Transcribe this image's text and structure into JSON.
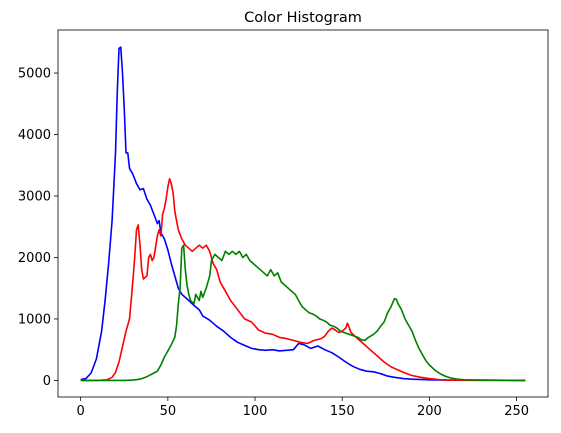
{
  "chart_data": {
    "type": "line",
    "title": "Color Histogram",
    "xlabel": "",
    "ylabel": "",
    "xlim": [
      -13,
      268
    ],
    "ylim": [
      -270,
      5700
    ],
    "xticks": [
      0,
      50,
      100,
      150,
      200,
      250
    ],
    "yticks": [
      0,
      1000,
      2000,
      3000,
      4000,
      5000
    ],
    "grid": false,
    "legend": "none",
    "series": [
      {
        "color": "#0000ff",
        "points": [
          [
            0,
            15
          ],
          [
            3,
            30
          ],
          [
            6,
            120
          ],
          [
            9,
            350
          ],
          [
            12,
            800
          ],
          [
            14,
            1300
          ],
          [
            16,
            1900
          ],
          [
            18,
            2600
          ],
          [
            20,
            3700
          ],
          [
            21,
            4700
          ],
          [
            22,
            5400
          ],
          [
            23,
            5420
          ],
          [
            24,
            5000
          ],
          [
            25,
            4400
          ],
          [
            26,
            3700
          ],
          [
            27,
            3700
          ],
          [
            28,
            3450
          ],
          [
            30,
            3350
          ],
          [
            32,
            3200
          ],
          [
            34,
            3100
          ],
          [
            36,
            3120
          ],
          [
            38,
            2950
          ],
          [
            40,
            2850
          ],
          [
            42,
            2700
          ],
          [
            44,
            2550
          ],
          [
            45,
            2600
          ],
          [
            46,
            2400
          ],
          [
            48,
            2300
          ],
          [
            50,
            2120
          ],
          [
            52,
            1900
          ],
          [
            54,
            1700
          ],
          [
            56,
            1500
          ],
          [
            58,
            1400
          ],
          [
            60,
            1350
          ],
          [
            62,
            1300
          ],
          [
            65,
            1220
          ],
          [
            68,
            1150
          ],
          [
            70,
            1050
          ],
          [
            74,
            980
          ],
          [
            78,
            880
          ],
          [
            82,
            800
          ],
          [
            86,
            700
          ],
          [
            90,
            620
          ],
          [
            94,
            570
          ],
          [
            98,
            520
          ],
          [
            102,
            500
          ],
          [
            106,
            490
          ],
          [
            110,
            500
          ],
          [
            114,
            480
          ],
          [
            118,
            490
          ],
          [
            122,
            500
          ],
          [
            125,
            600
          ],
          [
            128,
            580
          ],
          [
            132,
            520
          ],
          [
            136,
            560
          ],
          [
            140,
            500
          ],
          [
            144,
            450
          ],
          [
            148,
            380
          ],
          [
            152,
            300
          ],
          [
            156,
            230
          ],
          [
            160,
            180
          ],
          [
            164,
            150
          ],
          [
            168,
            140
          ],
          [
            172,
            110
          ],
          [
            176,
            70
          ],
          [
            180,
            50
          ],
          [
            185,
            30
          ],
          [
            190,
            20
          ],
          [
            200,
            10
          ],
          [
            210,
            5
          ],
          [
            220,
            3
          ],
          [
            255,
            0
          ]
        ]
      },
      {
        "color": "#ff0000",
        "points": [
          [
            0,
            0
          ],
          [
            10,
            0
          ],
          [
            15,
            10
          ],
          [
            18,
            50
          ],
          [
            20,
            130
          ],
          [
            22,
            300
          ],
          [
            24,
            550
          ],
          [
            26,
            800
          ],
          [
            28,
            1000
          ],
          [
            29,
            1300
          ],
          [
            30,
            1650
          ],
          [
            31,
            2000
          ],
          [
            32,
            2450
          ],
          [
            33,
            2530
          ],
          [
            34,
            2200
          ],
          [
            35,
            1800
          ],
          [
            36,
            1650
          ],
          [
            38,
            1700
          ],
          [
            39,
            2000
          ],
          [
            40,
            2050
          ],
          [
            41,
            1950
          ],
          [
            42,
            2000
          ],
          [
            44,
            2350
          ],
          [
            45,
            2450
          ],
          [
            46,
            2350
          ],
          [
            47,
            2700
          ],
          [
            48,
            2800
          ],
          [
            49,
            2950
          ],
          [
            50,
            3150
          ],
          [
            51,
            3280
          ],
          [
            52,
            3200
          ],
          [
            53,
            3050
          ],
          [
            54,
            2750
          ],
          [
            56,
            2450
          ],
          [
            58,
            2300
          ],
          [
            60,
            2200
          ],
          [
            62,
            2150
          ],
          [
            64,
            2100
          ],
          [
            66,
            2150
          ],
          [
            68,
            2200
          ],
          [
            70,
            2150
          ],
          [
            72,
            2200
          ],
          [
            74,
            2100
          ],
          [
            76,
            1900
          ],
          [
            78,
            1800
          ],
          [
            80,
            1600
          ],
          [
            82,
            1500
          ],
          [
            86,
            1300
          ],
          [
            90,
            1150
          ],
          [
            94,
            1000
          ],
          [
            98,
            950
          ],
          [
            102,
            820
          ],
          [
            106,
            770
          ],
          [
            110,
            750
          ],
          [
            114,
            700
          ],
          [
            118,
            680
          ],
          [
            122,
            650
          ],
          [
            126,
            620
          ],
          [
            130,
            600
          ],
          [
            134,
            650
          ],
          [
            138,
            680
          ],
          [
            140,
            720
          ],
          [
            142,
            800
          ],
          [
            144,
            850
          ],
          [
            146,
            820
          ],
          [
            148,
            780
          ],
          [
            150,
            800
          ],
          [
            152,
            850
          ],
          [
            153,
            930
          ],
          [
            155,
            780
          ],
          [
            158,
            700
          ],
          [
            162,
            600
          ],
          [
            166,
            500
          ],
          [
            170,
            400
          ],
          [
            174,
            300
          ],
          [
            178,
            220
          ],
          [
            182,
            170
          ],
          [
            186,
            120
          ],
          [
            190,
            80
          ],
          [
            195,
            50
          ],
          [
            200,
            30
          ],
          [
            205,
            15
          ],
          [
            210,
            5
          ],
          [
            220,
            2
          ],
          [
            255,
            0
          ]
        ]
      },
      {
        "color": "#008000",
        "points": [
          [
            0,
            0
          ],
          [
            25,
            0
          ],
          [
            30,
            5
          ],
          [
            34,
            20
          ],
          [
            38,
            60
          ],
          [
            42,
            120
          ],
          [
            44,
            150
          ],
          [
            46,
            250
          ],
          [
            48,
            380
          ],
          [
            50,
            480
          ],
          [
            52,
            580
          ],
          [
            54,
            700
          ],
          [
            55,
            900
          ],
          [
            56,
            1250
          ],
          [
            57,
            1500
          ],
          [
            58,
            2150
          ],
          [
            59,
            2200
          ],
          [
            60,
            1800
          ],
          [
            61,
            1550
          ],
          [
            62,
            1400
          ],
          [
            63,
            1300
          ],
          [
            65,
            1250
          ],
          [
            66,
            1400
          ],
          [
            67,
            1350
          ],
          [
            68,
            1300
          ],
          [
            69,
            1450
          ],
          [
            70,
            1350
          ],
          [
            72,
            1500
          ],
          [
            74,
            1700
          ],
          [
            75,
            1950
          ],
          [
            77,
            2050
          ],
          [
            79,
            2000
          ],
          [
            81,
            1950
          ],
          [
            83,
            2100
          ],
          [
            85,
            2050
          ],
          [
            87,
            2100
          ],
          [
            89,
            2050
          ],
          [
            91,
            2100
          ],
          [
            93,
            2000
          ],
          [
            95,
            2050
          ],
          [
            97,
            1950
          ],
          [
            99,
            1900
          ],
          [
            101,
            1850
          ],
          [
            103,
            1800
          ],
          [
            105,
            1750
          ],
          [
            107,
            1700
          ],
          [
            109,
            1800
          ],
          [
            111,
            1700
          ],
          [
            113,
            1750
          ],
          [
            115,
            1600
          ],
          [
            117,
            1550
          ],
          [
            119,
            1500
          ],
          [
            121,
            1450
          ],
          [
            123,
            1400
          ],
          [
            125,
            1300
          ],
          [
            127,
            1200
          ],
          [
            129,
            1150
          ],
          [
            131,
            1100
          ],
          [
            133,
            1080
          ],
          [
            135,
            1050
          ],
          [
            137,
            1000
          ],
          [
            139,
            980
          ],
          [
            141,
            950
          ],
          [
            143,
            900
          ],
          [
            145,
            880
          ],
          [
            147,
            850
          ],
          [
            149,
            800
          ],
          [
            151,
            780
          ],
          [
            153,
            760
          ],
          [
            155,
            740
          ],
          [
            157,
            720
          ],
          [
            159,
            700
          ],
          [
            161,
            660
          ],
          [
            163,
            650
          ],
          [
            165,
            700
          ],
          [
            168,
            750
          ],
          [
            170,
            800
          ],
          [
            172,
            880
          ],
          [
            174,
            950
          ],
          [
            176,
            1100
          ],
          [
            178,
            1200
          ],
          [
            180,
            1330
          ],
          [
            181,
            1320
          ],
          [
            182,
            1250
          ],
          [
            184,
            1150
          ],
          [
            186,
            1000
          ],
          [
            188,
            900
          ],
          [
            190,
            800
          ],
          [
            192,
            650
          ],
          [
            194,
            520
          ],
          [
            196,
            420
          ],
          [
            198,
            320
          ],
          [
            200,
            250
          ],
          [
            203,
            170
          ],
          [
            206,
            110
          ],
          [
            209,
            70
          ],
          [
            212,
            40
          ],
          [
            216,
            20
          ],
          [
            220,
            10
          ],
          [
            230,
            5
          ],
          [
            255,
            0
          ]
        ]
      }
    ]
  }
}
